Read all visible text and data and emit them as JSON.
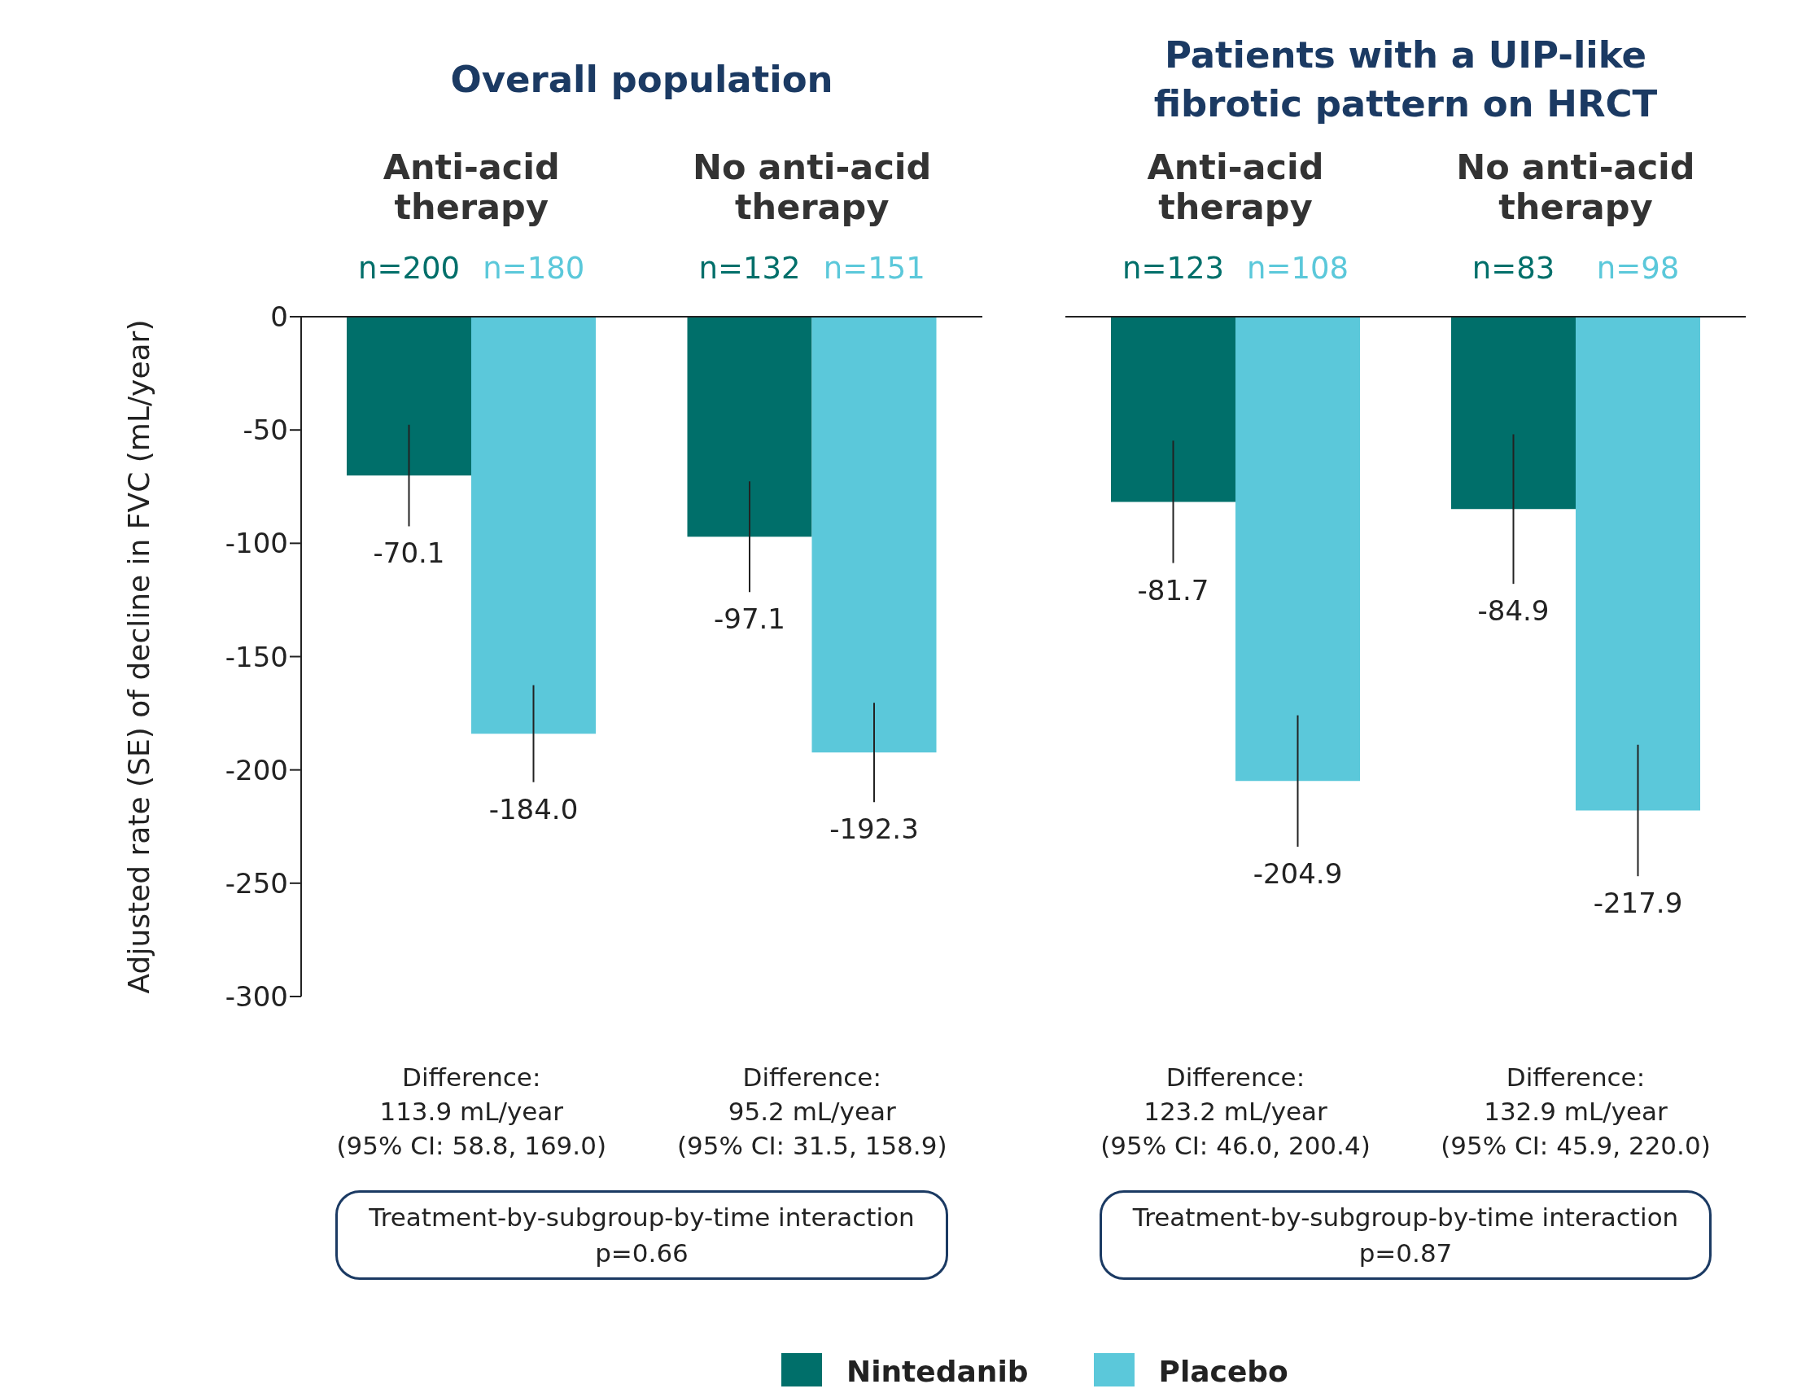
{
  "chart_data": [
    {
      "type": "bar",
      "title": "Overall population",
      "ylabel": "Adjusted rate (SE) of decline in FVC (mL/year)",
      "categories": [
        "Anti-acid therapy",
        "No anti-acid therapy"
      ],
      "series": [
        {
          "name": "Nintedanib",
          "color": "#006f6a",
          "values": [
            -70.1,
            -97.1
          ],
          "errors": [
            22.4,
            24.4
          ],
          "value_labels": [
            "-70.1",
            "-97.1"
          ]
        },
        {
          "name": "Placebo",
          "color": "#5bc8da",
          "values": [
            -184.0,
            -192.3
          ],
          "errors": [
            21.4,
            21.9
          ],
          "value_labels": [
            "-184.0",
            "-192.3"
          ]
        }
      ],
      "ylim": [
        -300,
        0
      ],
      "yticks": [
        0,
        -50,
        -100,
        -150,
        -200,
        -250,
        -300
      ],
      "legend": "bottom",
      "annotations": [
        "n=200",
        "n=180",
        "Difference:\n113.9 mL/year\n(95% CI: 58.8, 169.0)",
        "n=132",
        "n=151",
        "Difference:\n95.2 mL/year\n(95% CI: 31.5, 158.9)",
        "Treatment-by-subgroup-by-time interaction\np=0.66"
      ]
    },
    {
      "type": "bar",
      "title": "Patients with a UIP-like\nfibrotic pattern on HRCT",
      "categories": [
        "Anti-acid therapy",
        "No anti-acid therapy"
      ],
      "series": [
        {
          "color": "#006f6a",
          "values": [
            -81.7,
            -84.9
          ],
          "errors": [
            27,
            33
          ],
          "value_labels": [
            "-81.7",
            "-84.9"
          ]
        },
        {
          "color": "#5bc8da",
          "values": [
            -204.9,
            -217.9
          ],
          "errors": [
            29,
            29
          ],
          "value_labels": [
            "-204.9",
            "-217.9"
          ]
        }
      ],
      "ylim": [
        -300,
        0
      ],
      "yticks": [
        0,
        -50,
        -100,
        -150,
        -200,
        -250,
        -300
      ],
      "tick_labels": "x",
      "annotations": [
        "n=123",
        "n=108",
        "Difference:\n123.2 mL/year\n(95% CI: 46.0, 200.4)",
        "n=83",
        "n=98",
        "Difference:\n132.9 mL/year\n(95% CI: 45.9, 220.0)",
        "Treatment-by-subgroup-by-time interaction\np=0.87"
      ]
    }
  ]
}
